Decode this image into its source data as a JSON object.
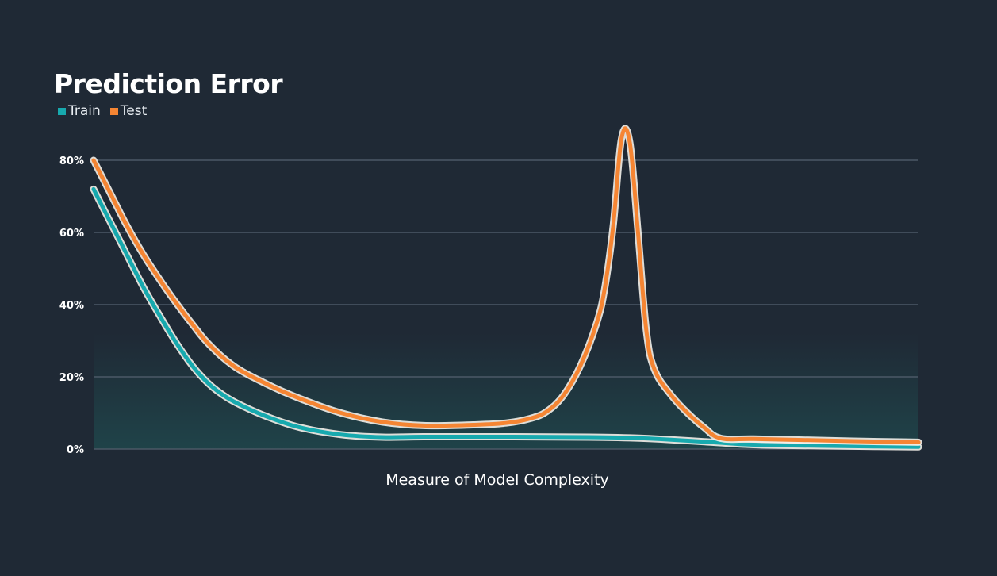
{
  "title": "Prediction Error",
  "colors": {
    "background": "#1f2935",
    "train": "#17a9ae",
    "test": "#f58533",
    "grid": "#4c5966",
    "fill": "#1f5859"
  },
  "chart_data": {
    "type": "line",
    "title": "Prediction Error",
    "xlabel": "Measure of Model Complexity",
    "ylabel": "",
    "xlim": [
      0,
      100
    ],
    "ylim": [
      0,
      80
    ],
    "yticks": [
      0,
      20,
      40,
      60,
      80
    ],
    "ytick_labels": [
      "0%",
      "20%",
      "40%",
      "60%",
      "80%"
    ],
    "grid": true,
    "legend_position": "top-left",
    "series": [
      {
        "name": "Train",
        "color": "#17a9ae",
        "x": [
          0,
          2,
          4,
          6,
          8,
          10,
          12,
          14,
          16,
          18,
          21,
          25,
          30,
          35,
          40,
          50,
          60,
          65,
          70,
          75,
          80,
          88,
          95,
          100
        ],
        "y": [
          72,
          63,
          54,
          45,
          37,
          29.5,
          23,
          18,
          14.5,
          12,
          9,
          6,
          4,
          3.3,
          3.4,
          3.4,
          3.3,
          3.1,
          2.6,
          1.9,
          1.2,
          0.9,
          0.7,
          0.6
        ]
      },
      {
        "name": "Test",
        "color": "#f58533",
        "x": [
          0,
          2,
          4,
          6,
          8,
          10,
          12,
          14,
          17,
          21,
          25,
          30,
          35,
          40,
          46,
          50,
          53,
          55,
          57,
          59,
          61,
          62,
          63,
          64,
          65,
          66,
          67,
          68,
          70,
          72,
          74,
          76,
          80,
          86,
          92,
          100
        ],
        "y": [
          80,
          71,
          62,
          54,
          47,
          40.5,
          34.5,
          29,
          23,
          18,
          14,
          10,
          7.5,
          6.5,
          6.7,
          7.2,
          8.5,
          10.5,
          15,
          23,
          35,
          45,
          62,
          86,
          85,
          60,
          33,
          22,
          15,
          10,
          6,
          3,
          2.8,
          2.5,
          2.2,
          1.9
        ]
      }
    ]
  }
}
